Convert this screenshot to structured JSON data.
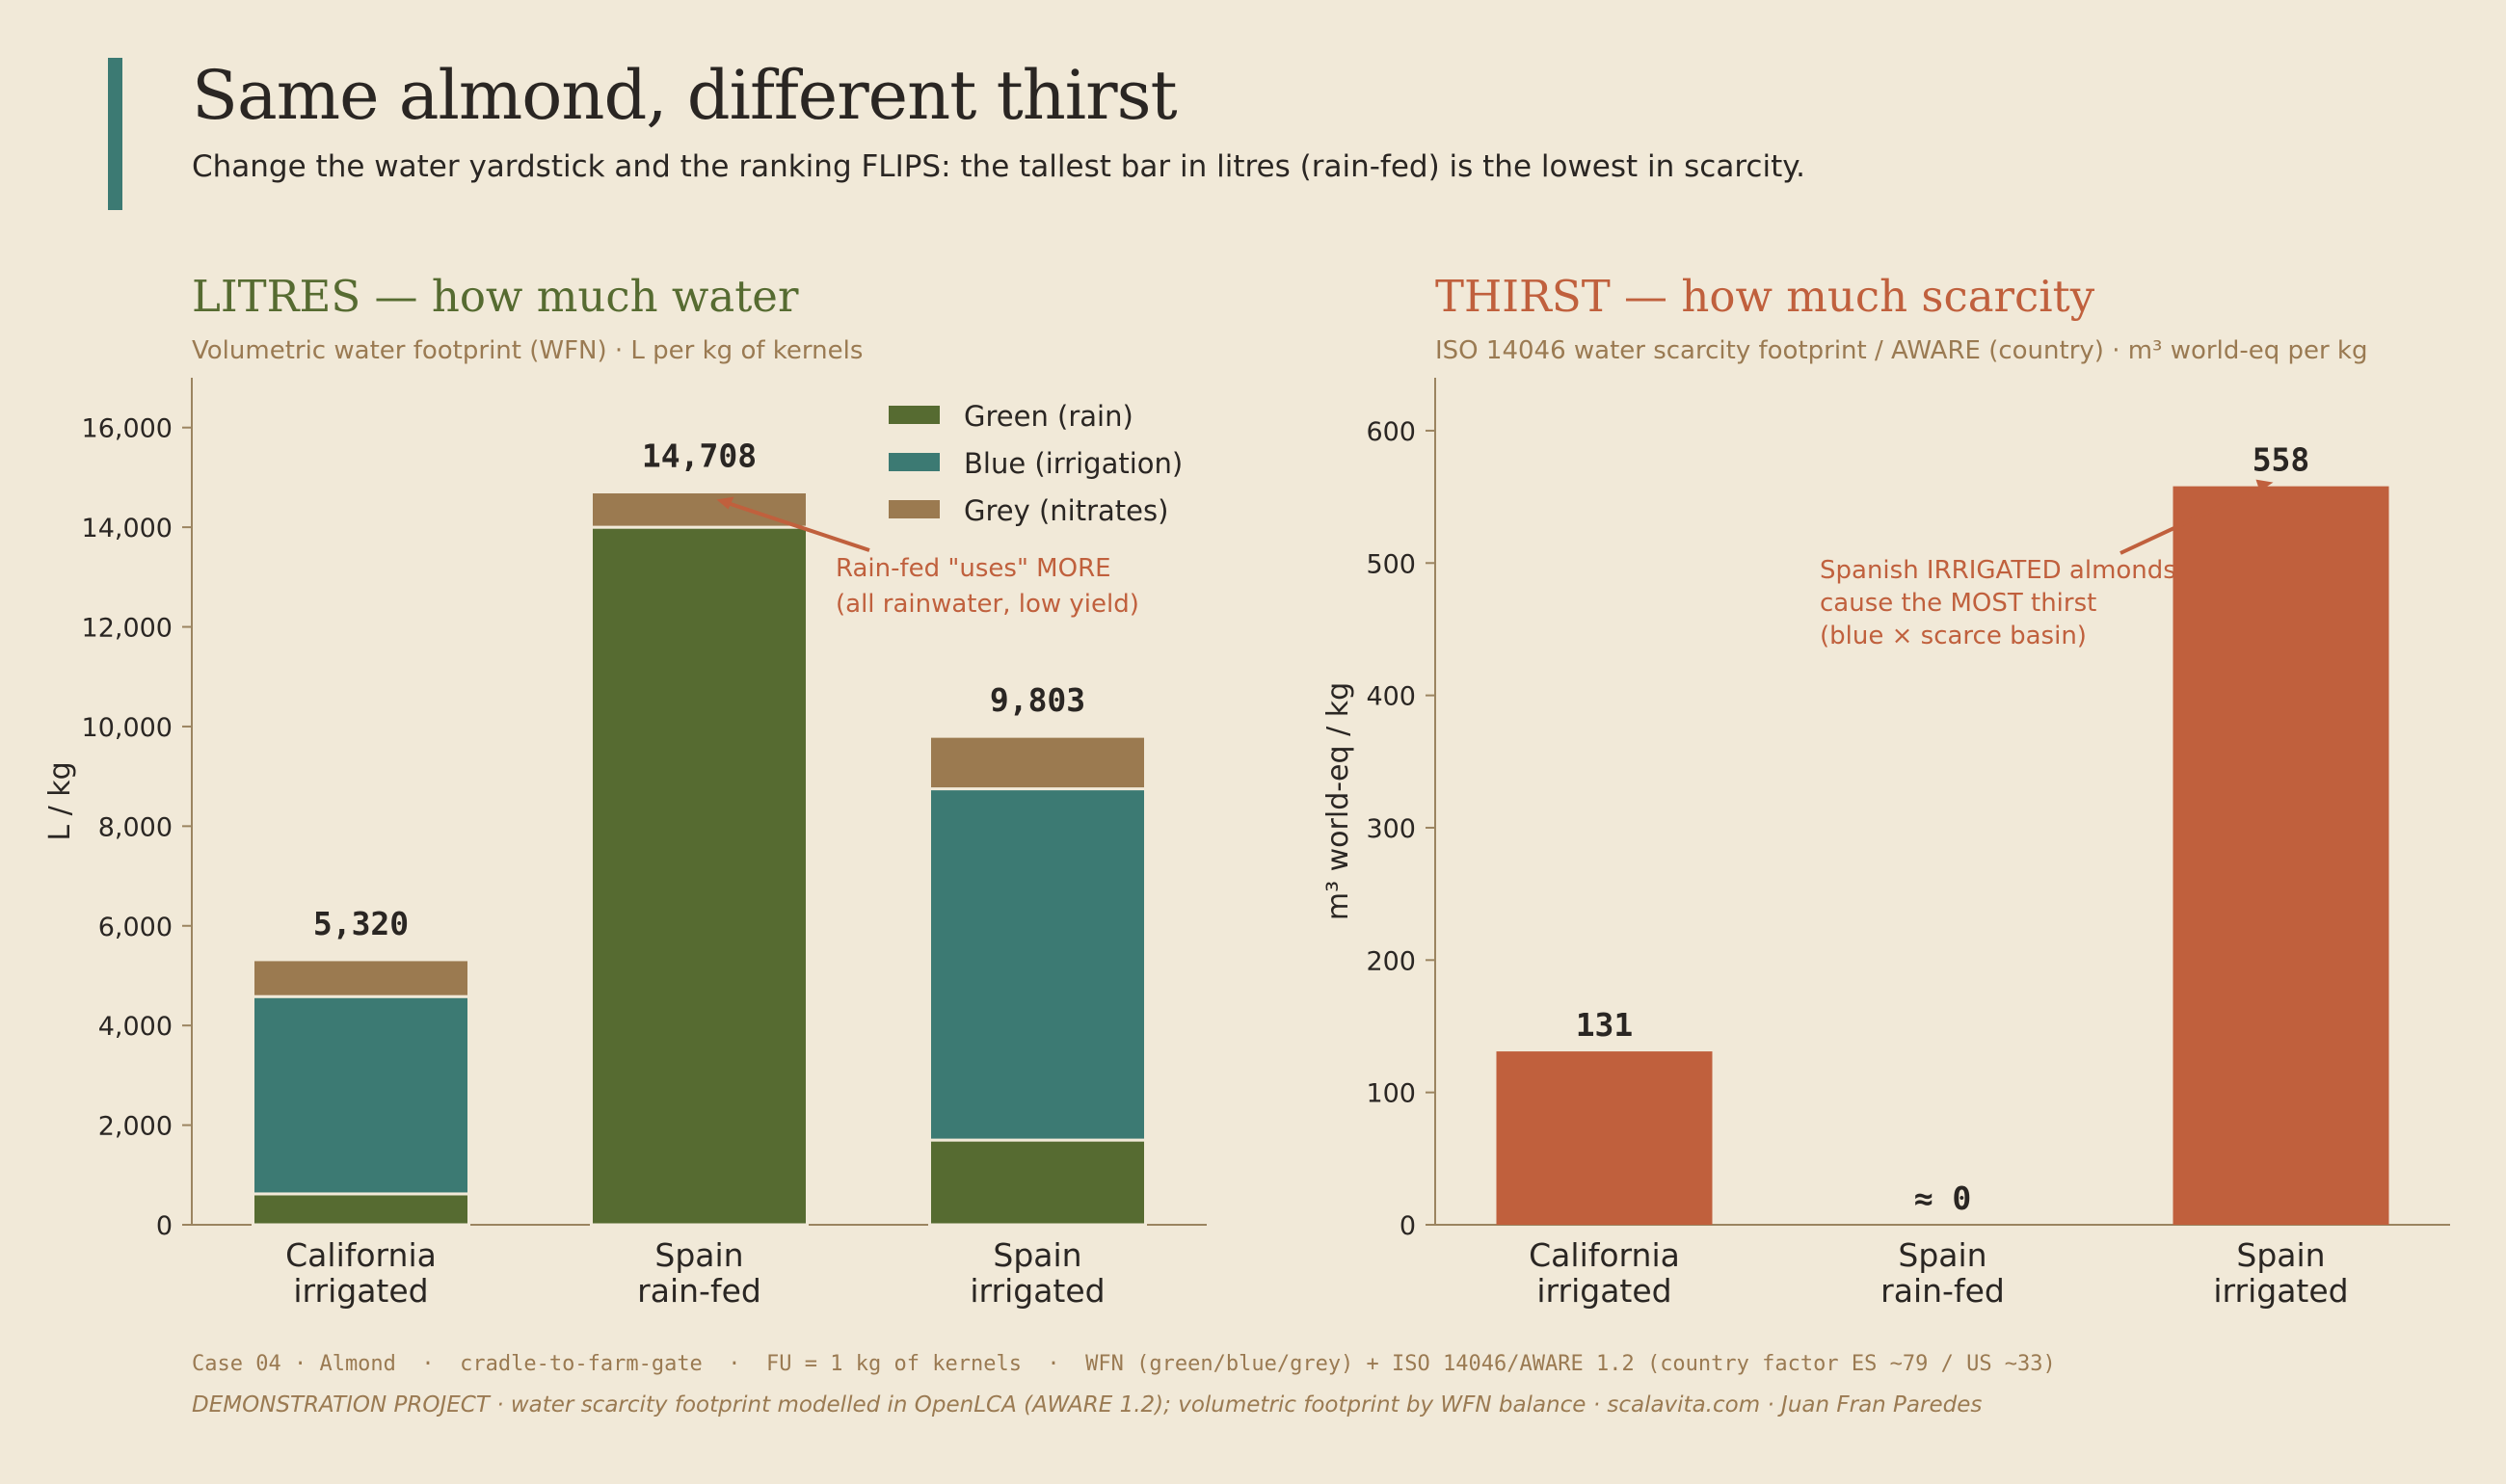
{
  "header": {
    "title": "Same almond, different thirst",
    "subtitle": "Change the water yardstick and the ranking FLIPS: the tallest bar in litres (rain-fed) is the lowest in scarcity."
  },
  "colors": {
    "green": "#566b31",
    "blue": "#3c7a73",
    "grey": "#9b7a50",
    "scarcity": "#c0603d",
    "background": "#f1e9d8"
  },
  "panels": {
    "litres": {
      "title": "LITRES — how much water",
      "subtitle": "Volumetric water footprint (WFN) · L per kg of kernels"
    },
    "thirst": {
      "title": "THIRST — how much scarcity",
      "subtitle": "ISO 14046 water scarcity footprint / AWARE (country) · m³ world-eq per kg"
    }
  },
  "chart_data": [
    {
      "type": "bar",
      "stacked": true,
      "categories": [
        "California\nirrigated",
        "Spain\nrain-fed",
        "Spain\nirrigated"
      ],
      "series": [
        {
          "name": "Green (rain)",
          "values": [
            620,
            14000,
            1700
          ],
          "color": "#566b31"
        },
        {
          "name": "Blue (irrigation)",
          "values": [
            3960,
            0,
            7050
          ],
          "color": "#3c7a73"
        },
        {
          "name": "Grey (nitrates)",
          "values": [
            740,
            708,
            1053
          ],
          "color": "#9b7a50"
        }
      ],
      "totals": [
        "5,320",
        "14,708",
        "9,803"
      ],
      "ylabel": "L / kg",
      "ylim": [
        0,
        17000
      ],
      "yticks": [
        0,
        2000,
        4000,
        6000,
        8000,
        10000,
        12000,
        14000,
        16000
      ],
      "ytick_labels": [
        "0",
        "2,000",
        "4,000",
        "6,000",
        "8,000",
        "10,000",
        "12,000",
        "14,000",
        "16,000"
      ],
      "legend_position": "top-right",
      "annotation": {
        "text": [
          "Rain-fed \"uses\" MORE",
          "(all rainwater, low yield)"
        ],
        "points_to": "Spain\nrain-fed"
      }
    },
    {
      "type": "bar",
      "categories": [
        "California\nirrigated",
        "Spain\nrain-fed",
        "Spain\nirrigated"
      ],
      "values": [
        131,
        0,
        558
      ],
      "value_labels": [
        "131",
        "≈ 0",
        "558"
      ],
      "color": "#c0603d",
      "ylabel": "m³ world-eq / kg",
      "ylim": [
        0,
        640
      ],
      "yticks": [
        0,
        100,
        200,
        300,
        400,
        500,
        600
      ],
      "ytick_labels": [
        "0",
        "100",
        "200",
        "300",
        "400",
        "500",
        "600"
      ],
      "annotation": {
        "text": [
          "Spanish IRRIGATED almonds",
          "cause the MOST thirst",
          "(blue × scarce basin)"
        ],
        "points_to": "Spain\nirrigated"
      }
    }
  ],
  "footer": {
    "line1": "Case 04 · Almond  ·  cradle-to-farm-gate  ·  FU = 1 kg of kernels  ·  WFN (green/blue/grey) + ISO 14046/AWARE 1.2 (country factor ES ~79 / US ~33)",
    "line2": "DEMONSTRATION PROJECT · water scarcity footprint modelled in OpenLCA (AWARE 1.2); volumetric footprint by WFN balance  ·  scalavita.com · Juan Fran Paredes"
  }
}
